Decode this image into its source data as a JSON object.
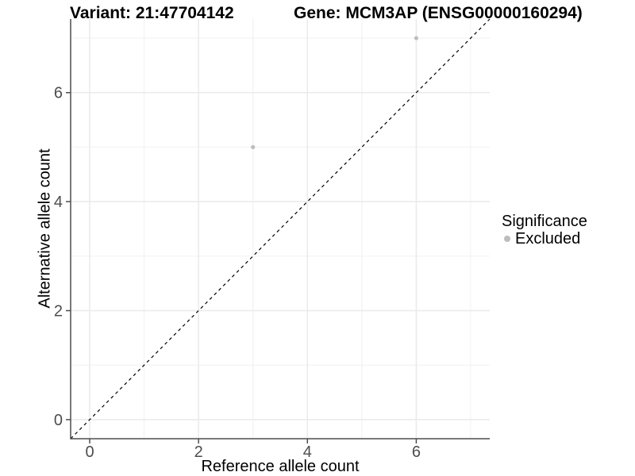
{
  "chart_data": {
    "type": "scatter",
    "title_left": "Variant: 21:47704142",
    "title_right": "Gene: MCM3AP (ENSG00000160294)",
    "xlabel": "Reference allele count",
    "ylabel": "Alternative allele count",
    "xlim": [
      -0.35,
      7.35
    ],
    "ylim": [
      -0.35,
      7.35
    ],
    "x_major_ticks": [
      0,
      2,
      4,
      6
    ],
    "y_major_ticks": [
      0,
      2,
      4,
      6
    ],
    "x_minor_gridlines": [
      1,
      3,
      5,
      7
    ],
    "y_minor_gridlines": [
      1,
      3,
      5,
      7
    ],
    "grid": "major and minor gridlines on white background",
    "reference_line": {
      "type": "identity y=x",
      "style": "dashed",
      "color": "#000000"
    },
    "series": [
      {
        "name": "Excluded",
        "color": "#bdbdbd",
        "points": [
          {
            "x": 3,
            "y": 5
          },
          {
            "x": 6,
            "y": 7
          }
        ]
      }
    ],
    "legend": {
      "title": "Significance",
      "position": "right",
      "items": [
        {
          "label": "Excluded",
          "color": "#bdbdbd"
        }
      ]
    }
  },
  "colors": {
    "background": "#ffffff",
    "grid_major": "#ebebeb",
    "grid_minor": "#f4f4f4",
    "axis_line": "#4d4d4d",
    "tick_text": "#4d4d4d",
    "title_text": "#000000",
    "point": "#bdbdbd"
  }
}
